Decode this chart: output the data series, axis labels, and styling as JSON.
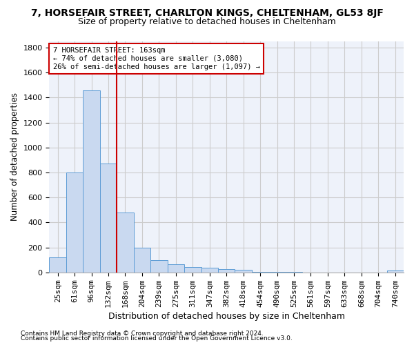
{
  "title": "7, HORSEFAIR STREET, CHARLTON KINGS, CHELTENHAM, GL53 8JF",
  "subtitle": "Size of property relative to detached houses in Cheltenham",
  "xlabel": "Distribution of detached houses by size in Cheltenham",
  "ylabel": "Number of detached properties",
  "footnote1": "Contains HM Land Registry data © Crown copyright and database right 2024.",
  "footnote2": "Contains public sector information licensed under the Open Government Licence v3.0.",
  "categories": [
    "25sqm",
    "61sqm",
    "96sqm",
    "132sqm",
    "168sqm",
    "204sqm",
    "239sqm",
    "275sqm",
    "311sqm",
    "347sqm",
    "382sqm",
    "418sqm",
    "454sqm",
    "490sqm",
    "525sqm",
    "561sqm",
    "597sqm",
    "633sqm",
    "668sqm",
    "704sqm",
    "740sqm"
  ],
  "values": [
    120,
    800,
    1460,
    870,
    480,
    200,
    100,
    65,
    45,
    35,
    28,
    20,
    5,
    3,
    2,
    1,
    1,
    0,
    0,
    0,
    15
  ],
  "bar_color": "#c9d9f0",
  "bar_edge_color": "#5b9bd5",
  "vline_index": 3.5,
  "vline_color": "#cc0000",
  "annotation_text": "7 HORSEFAIR STREET: 163sqm\n← 74% of detached houses are smaller (3,080)\n26% of semi-detached houses are larger (1,097) →",
  "annotation_box_color": "#cc0000",
  "ylim": [
    0,
    1850
  ],
  "yticks": [
    0,
    200,
    400,
    600,
    800,
    1000,
    1200,
    1400,
    1600,
    1800
  ],
  "grid_color": "#cccccc",
  "background_color": "#eef2fa",
  "title_fontsize": 10,
  "subtitle_fontsize": 9,
  "xlabel_fontsize": 9,
  "ylabel_fontsize": 8.5,
  "tick_fontsize": 8,
  "footnote_fontsize": 6.5
}
